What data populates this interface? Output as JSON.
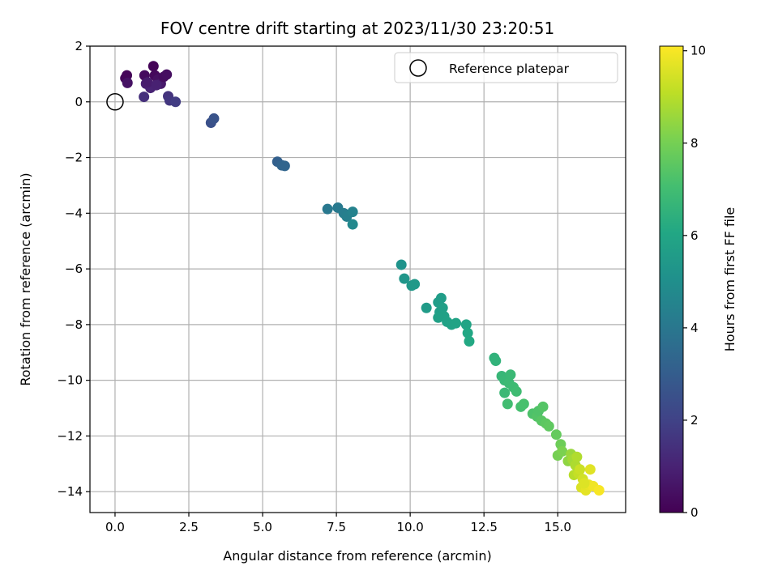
{
  "chart_data": {
    "type": "scatter",
    "title": "FOV centre drift starting at 2023/11/30 23:20:51",
    "xlabel": "Angular distance from reference (arcmin)",
    "ylabel": "Rotation from reference (arcmin)",
    "xlim": [
      -0.85,
      17.3
    ],
    "ylim": [
      -14.75,
      2.0
    ],
    "xticks": [
      0.0,
      2.5,
      5.0,
      7.5,
      10.0,
      12.5,
      15.0
    ],
    "xtick_labels": [
      "0.0",
      "2.5",
      "5.0",
      "7.5",
      "10.0",
      "12.5",
      "15.0"
    ],
    "yticks": [
      2,
      0,
      -2,
      -4,
      -6,
      -8,
      -10,
      -12,
      -14
    ],
    "ytick_labels": [
      "2",
      "0",
      "−2",
      "−4",
      "−6",
      "−8",
      "−10",
      "−12",
      "−14"
    ],
    "grid": true,
    "legend": {
      "location": "top-right",
      "entries": [
        "Reference platepar"
      ]
    },
    "reference_point": {
      "x": 0.0,
      "y": 0.0,
      "marker": "open-circle"
    },
    "colorbar": {
      "label": "Hours from first FF file",
      "colormap": "viridis",
      "range": [
        0,
        10.1
      ],
      "ticks": [
        0,
        2,
        4,
        6,
        8,
        10
      ],
      "tick_labels": [
        "0",
        "2",
        "4",
        "6",
        "8",
        "10"
      ]
    },
    "series": [
      {
        "points": [
          [
            0.35,
            0.85,
            0.2
          ],
          [
            0.4,
            0.95,
            0.15
          ],
          [
            0.42,
            0.68,
            0.5
          ],
          [
            1.0,
            0.95,
            0.3
          ],
          [
            1.05,
            0.65,
            0.9
          ],
          [
            1.3,
            1.28,
            0.1
          ],
          [
            1.35,
            0.95,
            0.25
          ],
          [
            1.45,
            0.8,
            0.45
          ],
          [
            1.55,
            0.65,
            0.7
          ],
          [
            1.65,
            0.9,
            0.35
          ],
          [
            1.75,
            0.98,
            0.4
          ],
          [
            1.2,
            0.5,
            1.0
          ],
          [
            1.1,
            0.7,
            0.8
          ],
          [
            0.98,
            0.18,
            1.4
          ],
          [
            1.4,
            0.6,
            0.95
          ],
          [
            1.8,
            0.2,
            1.5
          ],
          [
            1.85,
            0.05,
            1.6
          ],
          [
            2.05,
            0.0,
            1.8
          ],
          [
            3.25,
            -0.75,
            2.5
          ],
          [
            3.35,
            -0.6,
            2.6
          ],
          [
            5.5,
            -2.15,
            3.1
          ],
          [
            5.65,
            -2.28,
            3.25
          ],
          [
            5.75,
            -2.3,
            3.3
          ],
          [
            7.2,
            -3.85,
            4.05
          ],
          [
            7.55,
            -3.8,
            4.1
          ],
          [
            7.75,
            -4.0,
            4.25
          ],
          [
            7.85,
            -4.12,
            4.35
          ],
          [
            8.05,
            -3.95,
            4.45
          ],
          [
            8.05,
            -4.4,
            4.7
          ],
          [
            9.7,
            -5.85,
            5.2
          ],
          [
            9.8,
            -6.35,
            5.3
          ],
          [
            10.05,
            -6.6,
            5.4
          ],
          [
            10.15,
            -6.55,
            5.45
          ],
          [
            10.55,
            -7.4,
            5.55
          ],
          [
            10.95,
            -7.2,
            5.6
          ],
          [
            11.0,
            -7.55,
            5.65
          ],
          [
            11.05,
            -7.05,
            5.6
          ],
          [
            11.1,
            -7.4,
            5.7
          ],
          [
            11.15,
            -7.7,
            5.75
          ],
          [
            10.95,
            -7.75,
            5.75
          ],
          [
            11.25,
            -7.9,
            5.8
          ],
          [
            11.4,
            -8.0,
            5.85
          ],
          [
            11.55,
            -7.95,
            5.9
          ],
          [
            11.9,
            -8.0,
            5.95
          ],
          [
            11.95,
            -8.3,
            6.05
          ],
          [
            12.0,
            -8.6,
            6.1
          ],
          [
            12.85,
            -9.2,
            6.5
          ],
          [
            12.9,
            -9.3,
            6.55
          ],
          [
            13.1,
            -9.85,
            6.7
          ],
          [
            13.2,
            -10.0,
            6.75
          ],
          [
            13.2,
            -10.45,
            6.8
          ],
          [
            13.35,
            -10.1,
            6.85
          ],
          [
            13.4,
            -9.8,
            6.8
          ],
          [
            13.5,
            -10.25,
            6.9
          ],
          [
            13.6,
            -10.4,
            6.95
          ],
          [
            13.3,
            -10.85,
            7.0
          ],
          [
            13.75,
            -10.95,
            7.1
          ],
          [
            13.85,
            -10.85,
            7.15
          ],
          [
            14.15,
            -11.2,
            7.25
          ],
          [
            14.3,
            -11.3,
            7.35
          ],
          [
            14.35,
            -11.1,
            7.3
          ],
          [
            14.5,
            -10.95,
            7.4
          ],
          [
            14.45,
            -11.45,
            7.45
          ],
          [
            14.6,
            -11.55,
            7.55
          ],
          [
            14.7,
            -11.65,
            7.6
          ],
          [
            14.95,
            -11.95,
            7.7
          ],
          [
            15.1,
            -12.3,
            7.85
          ],
          [
            15.0,
            -12.7,
            8.0
          ],
          [
            15.15,
            -12.55,
            8.1
          ],
          [
            15.35,
            -12.9,
            8.4
          ],
          [
            15.45,
            -12.65,
            8.55
          ],
          [
            15.5,
            -12.85,
            8.7
          ],
          [
            15.6,
            -13.05,
            8.85
          ],
          [
            15.55,
            -13.4,
            9.0
          ],
          [
            15.7,
            -13.35,
            9.2
          ],
          [
            15.85,
            -13.55,
            9.4
          ],
          [
            15.8,
            -13.85,
            9.55
          ],
          [
            15.95,
            -13.95,
            9.7
          ],
          [
            16.05,
            -13.75,
            9.8
          ],
          [
            16.1,
            -13.2,
            9.65
          ],
          [
            16.2,
            -13.8,
            9.9
          ],
          [
            16.4,
            -13.95,
            10.0
          ],
          [
            15.75,
            -13.2,
            9.3
          ],
          [
            15.9,
            -13.7,
            9.6
          ],
          [
            15.65,
            -12.75,
            8.9
          ]
        ]
      }
    ]
  }
}
